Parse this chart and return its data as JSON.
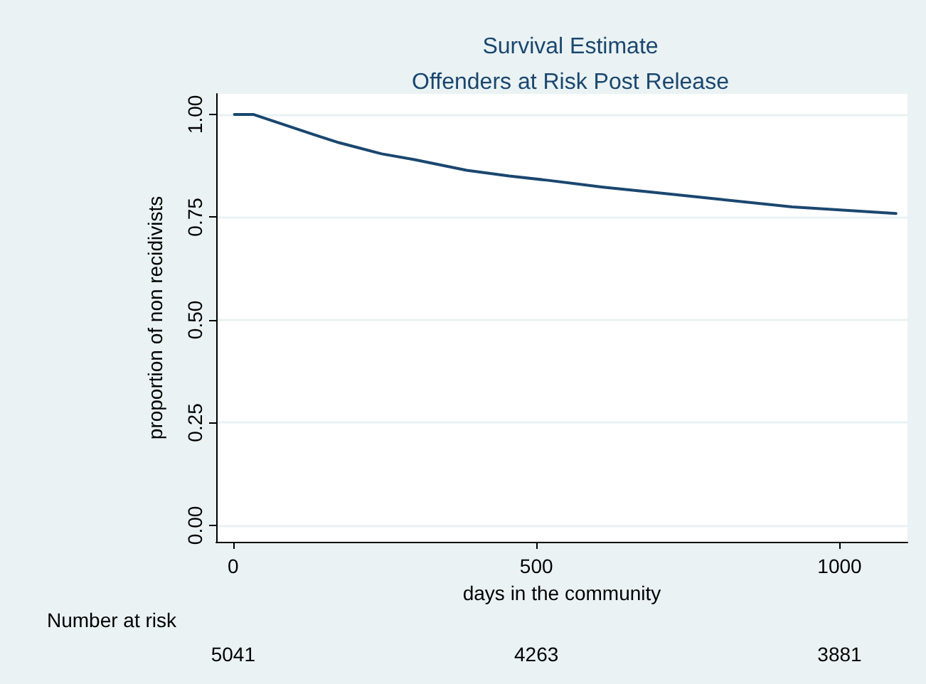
{
  "chart_data": {
    "type": "line",
    "title": "Survival Estimate",
    "subtitle": "Offenders at Risk Post Release",
    "xlabel": "days in the community",
    "ylabel": "proportion of non recidivists",
    "x": [
      2,
      33,
      135,
      175,
      245,
      299,
      385,
      455,
      517,
      610,
      696,
      805,
      922,
      1093
    ],
    "series": [
      {
        "color": "#1a476f",
        "values": [
          1.0,
          1.0,
          0.95,
          0.931,
          0.904,
          0.89,
          0.864,
          0.85,
          0.84,
          0.823,
          0.81,
          0.793,
          0.775,
          0.759
        ]
      }
    ],
    "xlim": [
      -28,
      1112
    ],
    "xticks": [
      0,
      500,
      1000
    ],
    "ylim": [
      -0.04,
      1.05
    ],
    "yticks": [
      {
        "value": 0,
        "label": "0.00"
      },
      {
        "value": 0.25,
        "label": "0.25"
      },
      {
        "value": 0.5,
        "label": "0.50"
      },
      {
        "value": 0.75,
        "label": "0.75"
      },
      {
        "value": 1,
        "label": "1.00"
      }
    ],
    "grid": "y",
    "marker": "none",
    "line_style": "solid",
    "annotations": [
      "Number at risk",
      "5041",
      "4263",
      "3881"
    ]
  }
}
